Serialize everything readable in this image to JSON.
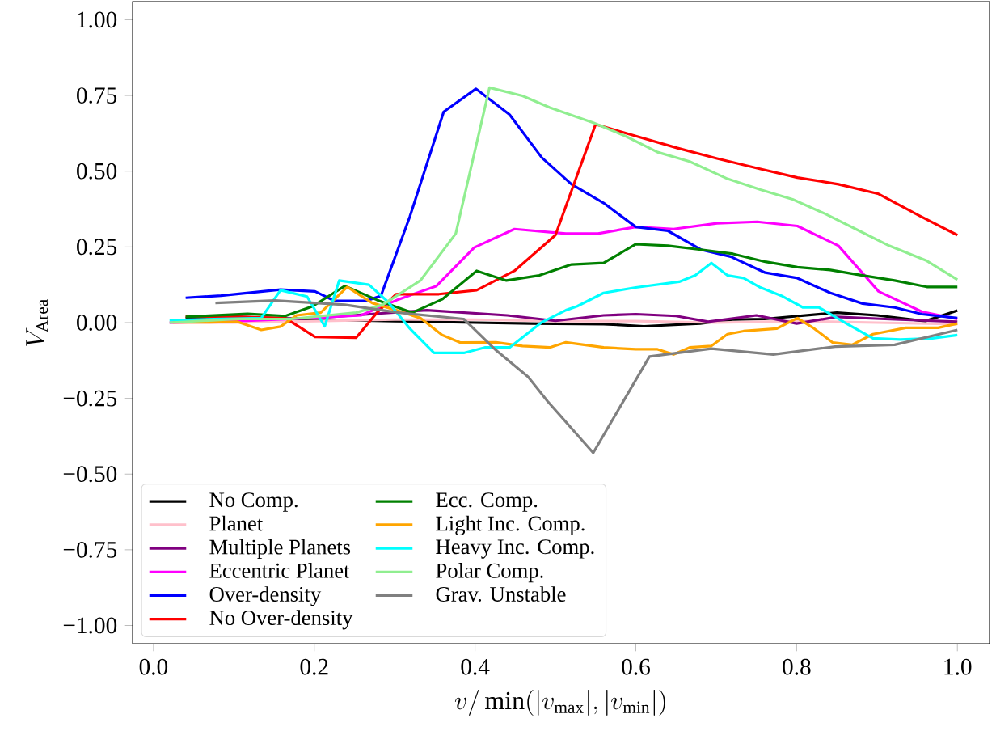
{
  "chart_data": {
    "type": "line",
    "xlabel": "v/\\min(|v_{\\mathrm{max}}|,|v_{\\mathrm{min}}|)",
    "ylabel": "V_{\\mathrm{Area}}",
    "xlim": [
      -0.026,
      1.04
    ],
    "ylim": [
      -1.06,
      1.06
    ],
    "xticks": [
      {
        "value": 0.0,
        "label": "0.0"
      },
      {
        "value": 0.2,
        "label": "0.2"
      },
      {
        "value": 0.4,
        "label": "0.4"
      },
      {
        "value": 0.6,
        "label": "0.6"
      },
      {
        "value": 0.8,
        "label": "0.8"
      },
      {
        "value": 1.0,
        "label": "1.0"
      }
    ],
    "yticks": [
      {
        "value": -1.0,
        "label": "−1.00"
      },
      {
        "value": -0.75,
        "label": "−0.75"
      },
      {
        "value": -0.5,
        "label": "−0.50"
      },
      {
        "value": -0.25,
        "label": "−0.25"
      },
      {
        "value": 0.0,
        "label": "0.00"
      },
      {
        "value": 0.25,
        "label": "0.25"
      },
      {
        "value": 0.5,
        "label": "0.50"
      },
      {
        "value": 0.75,
        "label": "0.75"
      },
      {
        "value": 1.0,
        "label": "1.00"
      }
    ],
    "legend": "bottom left",
    "series": [
      {
        "name": "No Comp.",
        "color": "#000000",
        "x": [
          0.04,
          0.1,
          0.2,
          0.3,
          0.4,
          0.47,
          0.56,
          0.61,
          0.68,
          0.72,
          0.76,
          0.8,
          0.85,
          0.9,
          0.96,
          1.0
        ],
        "values": [
          0.015,
          0.02,
          0.01,
          0.005,
          0.0,
          -0.003,
          -0.005,
          -0.012,
          -0.003,
          0.01,
          0.012,
          null,
          0.033,
          0.024,
          0.005,
          0.04
        ]
      },
      {
        "name": "Planet",
        "color": "#ffc0cb",
        "x": [
          0.02,
          0.1,
          0.2,
          0.3,
          0.4,
          0.5,
          0.6,
          0.7,
          0.8,
          0.9,
          1.0
        ],
        "values": [
          0.0,
          0.0,
          0.005,
          0.01,
          0.01,
          0.005,
          0.005,
          0.0,
          0.005,
          0.0,
          -0.005
        ]
      },
      {
        "name": "Multiple Planets",
        "color": "#800080",
        "x": [
          0.04,
          0.1,
          0.2,
          0.28,
          0.34,
          0.44,
          0.5,
          0.56,
          0.6,
          0.65,
          0.69,
          0.75,
          0.8,
          0.85,
          0.91,
          1.0
        ],
        "values": [
          0.01,
          0.01,
          0.015,
          0.03,
          0.041,
          0.024,
          0.006,
          0.024,
          0.028,
          0.022,
          0.003,
          0.024,
          -0.003,
          0.019,
          0.012,
          0.003
        ]
      },
      {
        "name": "Eccentric Planet",
        "color": "#ff00ff",
        "x": [
          0.02,
          0.104,
          0.171,
          0.258,
          0.305,
          0.352,
          0.399,
          0.449,
          0.513,
          0.553,
          0.6,
          0.647,
          0.701,
          0.751,
          0.801,
          0.852,
          0.902,
          0.956,
          1.0
        ],
        "values": [
          0.0,
          0.005,
          0.012,
          0.024,
          0.077,
          0.121,
          0.248,
          0.309,
          0.294,
          0.294,
          0.316,
          0.309,
          0.328,
          0.333,
          0.319,
          0.254,
          0.103,
          0.036,
          0.012
        ]
      },
      {
        "name": "Over-density",
        "color": "#0000ff",
        "x": [
          0.04,
          0.084,
          0.158,
          0.201,
          0.225,
          0.265,
          0.283,
          0.319,
          0.361,
          0.401,
          0.443,
          0.483,
          0.52,
          0.56,
          0.6,
          0.64,
          0.681,
          0.718,
          0.761,
          0.801,
          0.842,
          0.882,
          0.922,
          0.956,
          1.0
        ],
        "values": [
          0.082,
          0.089,
          0.109,
          0.103,
          0.072,
          0.072,
          0.089,
          0.351,
          0.696,
          0.772,
          0.687,
          0.545,
          0.457,
          0.395,
          0.316,
          0.303,
          0.241,
          0.218,
          0.165,
          0.147,
          0.098,
          0.063,
          0.05,
          0.028,
          0.015
        ]
      },
      {
        "name": "No Over-density",
        "color": "#ff0000",
        "x": [
          0.04,
          0.104,
          0.164,
          0.201,
          0.252,
          0.278,
          0.302,
          0.355,
          0.402,
          0.449,
          0.5,
          0.55,
          0.6,
          0.651,
          0.701,
          0.751,
          0.801,
          0.852,
          0.902,
          0.952,
          1.0
        ],
        "values": [
          0.02,
          0.019,
          0.015,
          -0.047,
          -0.05,
          0.033,
          0.094,
          0.094,
          0.107,
          0.171,
          0.289,
          0.655,
          0.616,
          0.577,
          0.542,
          0.51,
          0.479,
          0.457,
          0.425,
          0.354,
          0.289
        ]
      },
      {
        "name": "Ecc. Comp.",
        "color": "#008000",
        "x": [
          0.04,
          0.117,
          0.164,
          0.198,
          0.238,
          0.278,
          0.322,
          0.359,
          0.402,
          0.439,
          0.48,
          0.52,
          0.56,
          0.6,
          0.64,
          0.681,
          0.721,
          0.761,
          0.801,
          0.842,
          0.882,
          0.922,
          0.962,
          1.0
        ],
        "values": [
          0.019,
          0.029,
          0.022,
          0.054,
          0.121,
          0.075,
          0.033,
          0.077,
          0.171,
          0.139,
          0.156,
          0.192,
          0.197,
          0.259,
          0.254,
          0.241,
          0.227,
          0.201,
          0.183,
          0.174,
          0.156,
          0.139,
          0.118,
          0.118
        ]
      },
      {
        "name": "Light Inc. Comp.",
        "color": "#ffa500",
        "x": [
          0.024,
          0.07,
          0.104,
          0.134,
          0.158,
          0.178,
          0.208,
          0.241,
          0.272,
          0.302,
          0.332,
          0.359,
          0.382,
          0.426,
          0.459,
          0.493,
          0.513,
          0.56,
          0.6,
          0.627,
          0.647,
          0.667,
          0.694,
          0.714,
          0.734,
          0.775,
          0.801,
          0.822,
          0.845,
          0.869,
          0.895,
          0.936,
          0.976,
          1.0
        ],
        "values": [
          0.001,
          0.001,
          0.003,
          -0.024,
          -0.013,
          0.024,
          0.033,
          0.118,
          0.065,
          0.041,
          0.015,
          -0.041,
          -0.066,
          -0.065,
          -0.077,
          -0.082,
          -0.065,
          -0.082,
          -0.088,
          -0.088,
          -0.105,
          -0.082,
          -0.077,
          -0.038,
          -0.028,
          -0.02,
          0.015,
          -0.02,
          -0.066,
          -0.073,
          -0.038,
          -0.017,
          -0.017,
          -0.003
        ]
      },
      {
        "name": "Heavy Inc. Comp.",
        "color": "#00ffff",
        "x": [
          0.02,
          0.134,
          0.158,
          0.191,
          0.213,
          0.231,
          0.268,
          0.292,
          0.319,
          0.349,
          0.386,
          0.412,
          0.443,
          0.483,
          0.513,
          0.527,
          0.56,
          0.6,
          0.654,
          0.674,
          0.694,
          0.714,
          0.734,
          0.755,
          0.781,
          0.808,
          0.828,
          0.862,
          0.895,
          0.929,
          0.969,
          1.0
        ],
        "values": [
          0.008,
          0.015,
          0.107,
          0.086,
          -0.012,
          0.139,
          0.125,
          0.068,
          -0.02,
          -0.1,
          -0.1,
          -0.082,
          -0.082,
          0.001,
          0.041,
          0.054,
          0.098,
          0.116,
          0.135,
          0.156,
          0.197,
          0.156,
          0.147,
          0.116,
          0.089,
          0.05,
          0.05,
          -0.003,
          -0.052,
          -0.056,
          -0.052,
          -0.041
        ]
      },
      {
        "name": "Polar Comp.",
        "color": "#90ee90",
        "x": [
          0.02,
          0.104,
          0.171,
          0.252,
          0.285,
          0.332,
          0.376,
          0.418,
          0.459,
          0.493,
          0.547,
          0.587,
          0.627,
          0.667,
          0.714,
          0.755,
          0.795,
          0.835,
          0.875,
          0.915,
          0.962,
          1.0
        ],
        "values": [
          0.0,
          0.012,
          0.012,
          0.033,
          0.059,
          0.139,
          0.294,
          0.776,
          0.749,
          0.71,
          0.66,
          0.616,
          0.563,
          0.532,
          0.475,
          0.439,
          0.407,
          0.36,
          0.307,
          0.254,
          0.204,
          0.142
        ]
      },
      {
        "name": "Grav. Unstable",
        "color": "#808080",
        "x": [
          0.077,
          0.151,
          0.238,
          0.305,
          0.386,
          0.426,
          0.466,
          0.49,
          0.547,
          0.617,
          0.694,
          0.771,
          0.848,
          0.922,
          1.0
        ],
        "values": [
          0.065,
          0.073,
          0.059,
          0.033,
          0.012,
          -0.091,
          -0.179,
          -0.259,
          -0.43,
          -0.112,
          -0.086,
          -0.105,
          -0.079,
          -0.073,
          -0.024
        ]
      }
    ]
  }
}
